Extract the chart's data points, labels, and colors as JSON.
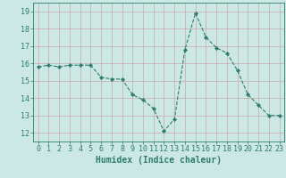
{
  "x": [
    0,
    1,
    2,
    3,
    4,
    5,
    6,
    7,
    8,
    9,
    10,
    11,
    12,
    13,
    14,
    15,
    16,
    17,
    18,
    19,
    20,
    21,
    22,
    23
  ],
  "y": [
    15.8,
    15.9,
    15.8,
    15.9,
    15.9,
    15.9,
    15.2,
    15.1,
    15.1,
    14.2,
    13.9,
    13.4,
    12.1,
    12.8,
    16.8,
    18.9,
    17.5,
    16.9,
    16.6,
    15.6,
    14.2,
    13.6,
    13.0,
    13.0
  ],
  "line_color": "#2e7d6e",
  "marker": "D",
  "marker_size": 2.2,
  "bg_color": "#cce8e4",
  "grid_color": "#c8a8a8",
  "xlabel": "Humidex (Indice chaleur)",
  "ylabel_ticks": [
    12,
    13,
    14,
    15,
    16,
    17,
    18,
    19
  ],
  "xlim": [
    -0.5,
    23.5
  ],
  "ylim": [
    11.5,
    19.5
  ],
  "xticks": [
    0,
    1,
    2,
    3,
    4,
    5,
    6,
    7,
    8,
    9,
    10,
    11,
    12,
    13,
    14,
    15,
    16,
    17,
    18,
    19,
    20,
    21,
    22,
    23
  ],
  "tick_color": "#2e7d6e",
  "label_color": "#2e7d6e",
  "spine_color": "#2e7d6e",
  "font_size_xlabel": 7.0,
  "font_size_ticks": 6.0
}
